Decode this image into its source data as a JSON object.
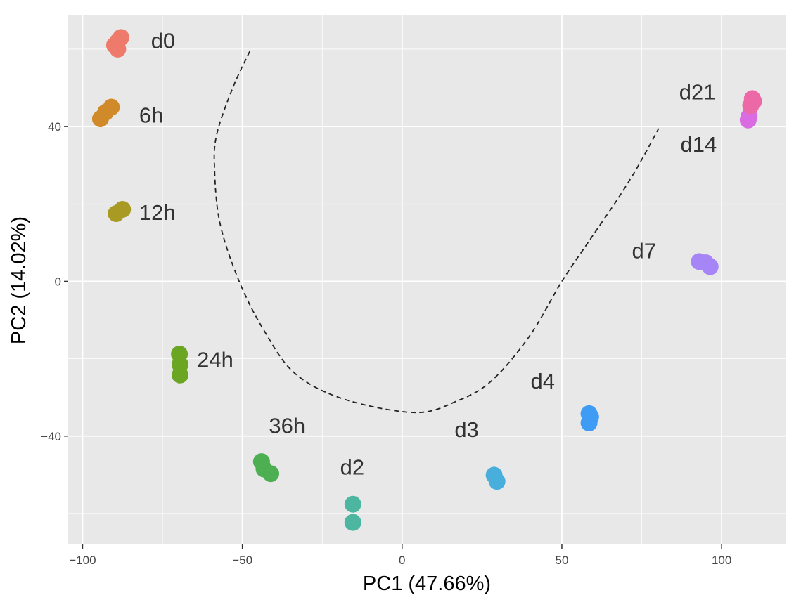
{
  "chart_data": {
    "type": "scatter",
    "title": "",
    "xlabel": "PC1 (47.66%)",
    "ylabel": "PC2 (14.02%)",
    "xlim": [
      -104.5,
      120
    ],
    "ylim": [
      -68,
      68.7
    ],
    "xticks": [
      -100,
      -50,
      0,
      50,
      100
    ],
    "yticks": [
      -40,
      0,
      40
    ],
    "xtick_labels": [
      "−100",
      "−50",
      "0",
      "50",
      "100"
    ],
    "ytick_labels": [
      "−40",
      "0",
      "40"
    ],
    "grid": true,
    "panel_background": "#E8E8E8",
    "legend": "none",
    "series": [
      {
        "name": "d0",
        "color": "#EE7A6C",
        "points": [
          [
            -89,
            62
          ],
          [
            -88,
            63
          ],
          [
            -90,
            61
          ],
          [
            -89,
            60
          ]
        ],
        "label_at": [
          -74.8,
          62.3
        ]
      },
      {
        "name": "6h",
        "color": "#D08A2A",
        "points": [
          [
            -94.4,
            42
          ],
          [
            -92.8,
            43.7
          ],
          [
            -91,
            45
          ]
        ],
        "label_at": [
          -78.5,
          43
        ]
      },
      {
        "name": "12h",
        "color": "#A89A22",
        "points": [
          [
            -89.5,
            17.5
          ],
          [
            -87.5,
            18.6
          ]
        ],
        "label_at": [
          -76.6,
          17.9
        ]
      },
      {
        "name": "24h",
        "color": "#6BA622",
        "points": [
          [
            -69.7,
            -18.8
          ],
          [
            -69.5,
            -21.5
          ],
          [
            -69.5,
            -24.2
          ]
        ],
        "label_at": [
          -58.5,
          -20.2
        ]
      },
      {
        "name": "36h",
        "color": "#4DAF52",
        "points": [
          [
            -44,
            -46.6
          ],
          [
            -43.2,
            -48.5
          ],
          [
            -41.1,
            -49.7
          ]
        ],
        "label_at": [
          -36,
          -37.2
        ]
      },
      {
        "name": "d2",
        "color": "#4DB6A0",
        "points": [
          [
            -15.4,
            -57.6
          ],
          [
            -15.4,
            -62.3
          ]
        ],
        "label_at": [
          -15.6,
          -47.9
        ]
      },
      {
        "name": "d3",
        "color": "#48AEDB",
        "points": [
          [
            28.8,
            -50.1
          ],
          [
            29.7,
            -51.7
          ]
        ],
        "label_at": [
          20.2,
          -38.2
        ]
      },
      {
        "name": "d4",
        "color": "#3F9CF5",
        "points": [
          [
            58.5,
            -34.2
          ],
          [
            58.5,
            -36.6
          ],
          [
            59,
            -35
          ]
        ],
        "label_at": [
          44,
          -25.7
        ]
      },
      {
        "name": "d7",
        "color": "#A685F7",
        "points": [
          [
            93,
            5.1
          ],
          [
            96.4,
            3.8
          ],
          [
            95,
            4.8
          ]
        ],
        "label_at": [
          75.7,
          8
        ]
      },
      {
        "name": "d14",
        "color": "#D96CE3",
        "points": [
          [
            108.3,
            41.7
          ],
          [
            108.6,
            42.6
          ]
        ],
        "label_at": [
          92.8,
          35.5
        ]
      },
      {
        "name": "d21",
        "color": "#EC68A6",
        "points": [
          [
            109.6,
            47.2
          ],
          [
            109.1,
            45.4
          ],
          [
            110,
            46.5
          ]
        ],
        "label_at": [
          92.4,
          49
        ]
      }
    ],
    "trajectory": {
      "style": "dashed",
      "points": [
        [
          -47.7,
          59.4
        ],
        [
          -53,
          50
        ],
        [
          -58,
          38
        ],
        [
          -58.7,
          29
        ],
        [
          -57,
          15
        ],
        [
          -51,
          0
        ],
        [
          -43,
          -13
        ],
        [
          -33.4,
          -23.9
        ],
        [
          -18,
          -30.5
        ],
        [
          4,
          -33.9
        ],
        [
          17,
          -31
        ],
        [
          28,
          -25.7
        ],
        [
          40,
          -14
        ],
        [
          50,
          0
        ],
        [
          59,
          11
        ],
        [
          67.8,
          21.7
        ],
        [
          74,
          30
        ],
        [
          80.3,
          39.5
        ]
      ]
    }
  }
}
